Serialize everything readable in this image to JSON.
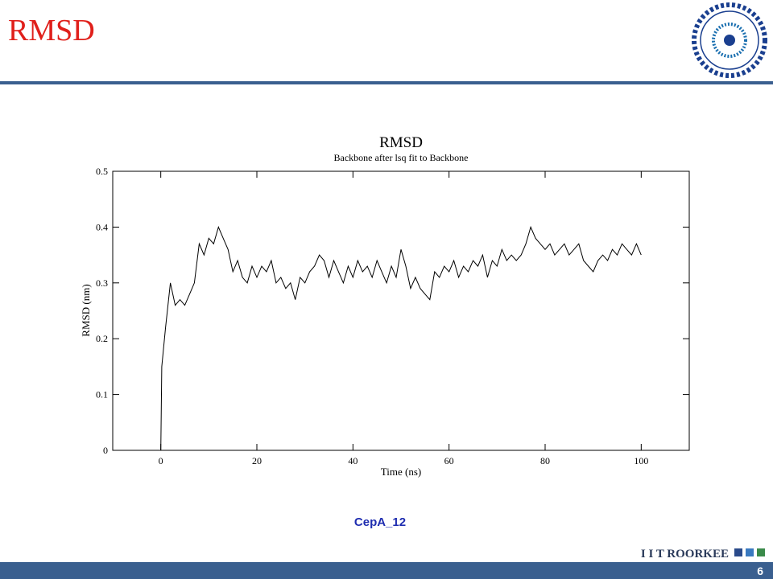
{
  "slide": {
    "title": "RMSD",
    "caption": "CepA_12",
    "footer": "I I T ROORKEE",
    "page_number": "6"
  },
  "chart_data": {
    "type": "line",
    "title": "RMSD",
    "subtitle": "Backbone after lsq fit to Backbone",
    "x_label": "Time (ns)",
    "y_label": "RMSD (nm)",
    "color": "#000000",
    "x": [
      0,
      0.2,
      1,
      2,
      3,
      4,
      5,
      6,
      7,
      8,
      9,
      10,
      11,
      12,
      13,
      14,
      15,
      16,
      17,
      18,
      19,
      20,
      21,
      22,
      23,
      24,
      25,
      26,
      27,
      28,
      29,
      30,
      31,
      32,
      33,
      34,
      35,
      36,
      37,
      38,
      39,
      40,
      41,
      42,
      43,
      44,
      45,
      46,
      47,
      48,
      49,
      50,
      51,
      52,
      53,
      54,
      55,
      56,
      57,
      58,
      59,
      60,
      61,
      62,
      63,
      64,
      65,
      66,
      67,
      68,
      69,
      70,
      71,
      72,
      73,
      74,
      75,
      76,
      77,
      78,
      79,
      80,
      81,
      82,
      83,
      84,
      85,
      86,
      87,
      88,
      89,
      90,
      91,
      92,
      93,
      94,
      95,
      96,
      97,
      98,
      99,
      100
    ],
    "values": [
      0,
      0.15,
      0.22,
      0.3,
      0.26,
      0.27,
      0.26,
      0.28,
      0.3,
      0.37,
      0.35,
      0.38,
      0.37,
      0.4,
      0.38,
      0.36,
      0.32,
      0.34,
      0.31,
      0.3,
      0.33,
      0.31,
      0.33,
      0.32,
      0.34,
      0.3,
      0.31,
      0.29,
      0.3,
      0.27,
      0.31,
      0.3,
      0.32,
      0.33,
      0.35,
      0.34,
      0.31,
      0.34,
      0.32,
      0.3,
      0.33,
      0.31,
      0.34,
      0.32,
      0.33,
      0.31,
      0.34,
      0.32,
      0.3,
      0.33,
      0.31,
      0.36,
      0.33,
      0.29,
      0.31,
      0.29,
      0.28,
      0.27,
      0.32,
      0.31,
      0.33,
      0.32,
      0.34,
      0.31,
      0.33,
      0.32,
      0.34,
      0.33,
      0.35,
      0.31,
      0.34,
      0.33,
      0.36,
      0.34,
      0.35,
      0.34,
      0.35,
      0.37,
      0.4,
      0.38,
      0.37,
      0.36,
      0.37,
      0.35,
      0.36,
      0.37,
      0.35,
      0.36,
      0.37,
      0.34,
      0.33,
      0.32,
      0.34,
      0.35,
      0.34,
      0.36,
      0.35,
      0.37,
      0.36,
      0.35,
      0.37,
      0.35
    ],
    "xlim": [
      -10,
      110
    ],
    "ylim": [
      0,
      0.5
    ],
    "xticks": [
      0,
      20,
      40,
      60,
      80,
      100
    ],
    "yticks": [
      0,
      0.1,
      0.2,
      0.3,
      0.4,
      0.5
    ]
  }
}
